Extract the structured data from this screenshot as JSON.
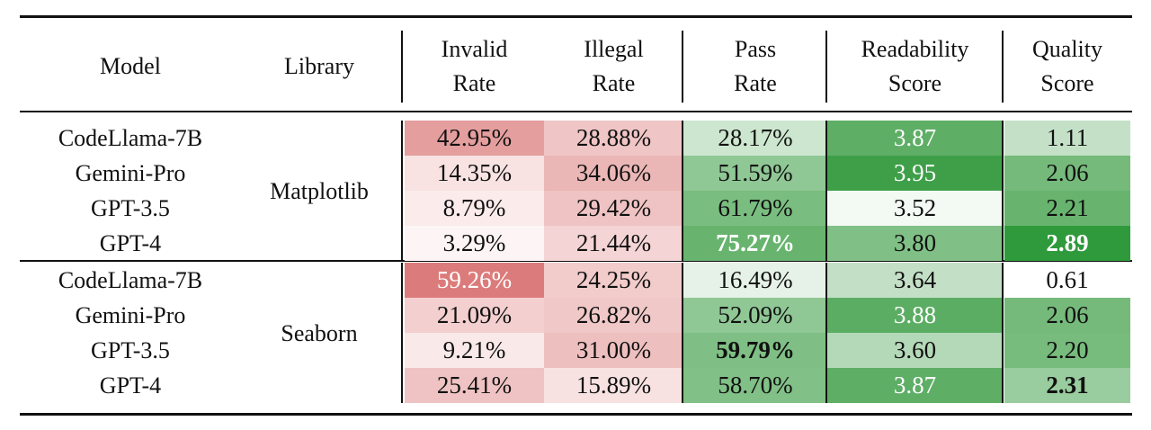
{
  "headers": {
    "model": "Model",
    "library": "Library",
    "invalid": [
      "Invalid",
      "Rate"
    ],
    "illegal": [
      "Illegal",
      "Rate"
    ],
    "pass": [
      "Pass",
      "Rate"
    ],
    "readability": [
      "Readability",
      "Score"
    ],
    "quality": [
      "Quality",
      "Score"
    ]
  },
  "groups": [
    {
      "library": "Matplotlib",
      "rows": [
        {
          "model": "CodeLlama-7B",
          "invalid": "42.95%",
          "illegal": "28.88%",
          "pass": "28.17%",
          "readability": "3.87",
          "quality": "1.11"
        },
        {
          "model": "Gemini-Pro",
          "invalid": "14.35%",
          "illegal": "34.06%",
          "pass": "51.59%",
          "readability": "3.95",
          "quality": "2.06"
        },
        {
          "model": "GPT-3.5",
          "invalid": "8.79%",
          "illegal": "29.42%",
          "pass": "61.79%",
          "readability": "3.52",
          "quality": "2.21"
        },
        {
          "model": "GPT-4",
          "invalid": "3.29%",
          "illegal": "21.44%",
          "pass": "75.27%",
          "readability": "3.80",
          "quality": "2.89"
        }
      ]
    },
    {
      "library": "Seaborn",
      "rows": [
        {
          "model": "CodeLlama-7B",
          "invalid": "59.26%",
          "illegal": "24.25%",
          "pass": "16.49%",
          "readability": "3.64",
          "quality": "0.61"
        },
        {
          "model": "Gemini-Pro",
          "invalid": "21.09%",
          "illegal": "26.82%",
          "pass": "52.09%",
          "readability": "3.88",
          "quality": "2.06"
        },
        {
          "model": "GPT-3.5",
          "invalid": "9.21%",
          "illegal": "31.00%",
          "pass": "59.79%",
          "readability": "3.60",
          "quality": "2.20"
        },
        {
          "model": "GPT-4",
          "invalid": "25.41%",
          "illegal": "15.89%",
          "pass": "58.70%",
          "readability": "3.87",
          "quality": "2.31"
        }
      ]
    }
  ],
  "cell_colors": {
    "invalid": [
      [
        "#e49e9e",
        "#f8e2e2",
        "#fbebeb",
        "#fdf5f5"
      ],
      [
        "#dc7b7b",
        "#f3cfcf",
        "#fae9e9",
        "#efc3c3"
      ]
    ],
    "illegal": [
      [
        "#efc5c5",
        "#ebb6b6",
        "#efc3c3",
        "#f4d4d4"
      ],
      [
        "#f2cbcb",
        "#f0c8c8",
        "#eebfbf",
        "#f8e1e1"
      ]
    ],
    "pass": [
      [
        "#cde6cf",
        "#8fc795",
        "#7abd80",
        "#68b46f"
      ],
      [
        "#e6f2e7",
        "#8fc795",
        "#7fbf85",
        "#81c087"
      ]
    ],
    "readability": [
      [
        "#5eae66",
        "#3e9f48",
        "#f3f9f3",
        "#80c086"
      ],
      [
        "#c3e0c6",
        "#5cad64",
        "#b4d9b8",
        "#5eae66"
      ]
    ],
    "quality": [
      [
        "#c4e1c7",
        "#75ba7b",
        "#68b46f",
        "#2f9a3b"
      ],
      [
        "#ffffff",
        "#75ba7b",
        "#77bb7d",
        "#99cc9e"
      ]
    ]
  },
  "emphasis": {
    "bold": [
      "1.3.pass-0.3",
      "quality-0.3",
      "pass-1.2",
      "quality-1.3"
    ],
    "light_text": [
      "readability-0.0",
      "readability-0.1",
      "readability-1.1",
      "readability-1.3",
      "invalid-1.0",
      "pass-0.3",
      "quality-0.3"
    ]
  }
}
